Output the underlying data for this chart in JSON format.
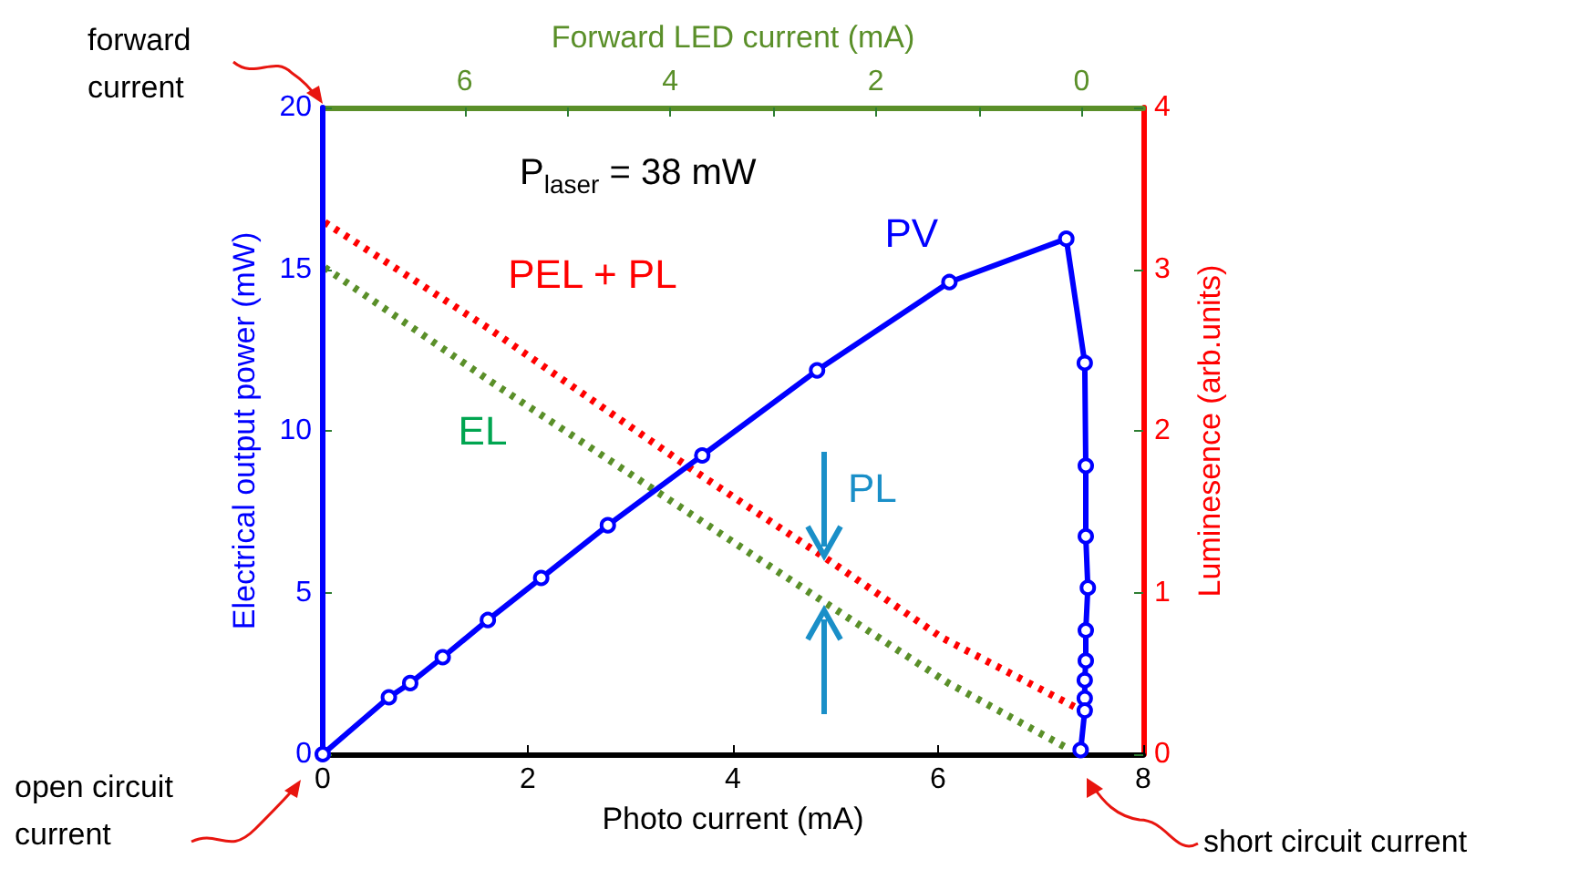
{
  "chart_data": {
    "type": "line",
    "xlabel": "Photo current (mA)",
    "ylabel": "Electrical output power (mW)",
    "y2label": "Luminesence (arb.units)",
    "x2label": "Forward LED current (mA)",
    "xlim": [
      0,
      8
    ],
    "xticks": [
      0,
      2,
      4,
      6,
      8
    ],
    "x2lim": [
      7.38,
      -0.6
    ],
    "x2ticks": [
      6,
      {
        "value": 5,
        "label": null
      },
      4,
      {
        "value": 3,
        "label": null
      },
      2,
      {
        "value": 1,
        "label": null
      },
      0
    ],
    "ylim": [
      0,
      20
    ],
    "yticks": [
      0,
      5,
      10,
      15,
      20
    ],
    "y2lim": [
      0,
      4
    ],
    "y2ticks": [
      0,
      1,
      2,
      3,
      4
    ],
    "grid": false,
    "legend": false,
    "series": [
      {
        "name": "PV",
        "color": "#0000ff",
        "marker": "circle",
        "line_style": "solid",
        "x": [
          0,
          0,
          0.645,
          0.853,
          1.17,
          1.61,
          2.13,
          2.78,
          3.7,
          4.82,
          6.11,
          7.25,
          7.43,
          7.44,
          7.44,
          7.46,
          7.44,
          7.44,
          7.43,
          7.43,
          7.43,
          7.39
        ],
        "values": [
          20,
          0,
          1.76,
          2.2,
          3.0,
          4.15,
          5.45,
          7.08,
          9.24,
          11.87,
          14.6,
          15.94,
          12.1,
          8.92,
          6.74,
          5.15,
          3.83,
          2.89,
          2.29,
          1.73,
          1.35,
          0.13
        ]
      },
      {
        "name": "PEL + PL",
        "color": "#ff0000",
        "marker": "none",
        "line_style": "dotted",
        "axis": "y2",
        "x": [
          0.02,
          1.65,
          3.58,
          4.91,
          6.04,
          7.4
        ],
        "values": [
          3.29,
          2.62,
          1.77,
          1.21,
          0.72,
          0.27
        ]
      },
      {
        "name": "EL",
        "color": "#5a8f29",
        "marker": "none",
        "line_style": "dotted",
        "axis": "y2",
        "x": [
          0.02,
          1.65,
          3.22,
          4.82,
          6.1,
          7.28
        ],
        "values": [
          3.01,
          2.3,
          1.64,
          0.97,
          0.44,
          0.03
        ]
      }
    ],
    "annotations": [
      "P$_{laser}$ = 38 mW",
      "PL",
      "forward current",
      "open circuit current",
      "short circuit current"
    ]
  }
}
